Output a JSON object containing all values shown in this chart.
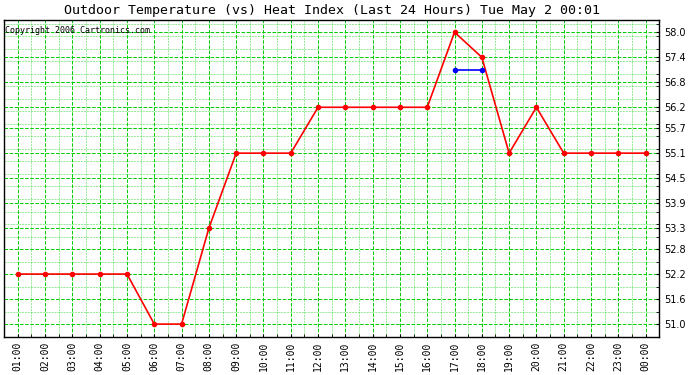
{
  "title": "Outdoor Temperature (vs) Heat Index (Last 24 Hours) Tue May 2 00:01",
  "copyright": "Copyright 2006 Cartronics.com",
  "x_labels": [
    "01:00",
    "02:00",
    "03:00",
    "04:00",
    "05:00",
    "06:00",
    "07:00",
    "08:00",
    "09:00",
    "10:00",
    "11:00",
    "12:00",
    "13:00",
    "14:00",
    "15:00",
    "16:00",
    "17:00",
    "18:00",
    "19:00",
    "20:00",
    "21:00",
    "22:00",
    "23:00",
    "00:00"
  ],
  "temp_data": [
    [
      0,
      52.2
    ],
    [
      1,
      52.2
    ],
    [
      2,
      52.2
    ],
    [
      3,
      52.2
    ],
    [
      4,
      52.2
    ],
    [
      5,
      51.0
    ],
    [
      6,
      51.0
    ],
    [
      7,
      53.3
    ],
    [
      8,
      55.1
    ],
    [
      9,
      55.1
    ],
    [
      10,
      55.1
    ],
    [
      11,
      56.2
    ],
    [
      12,
      56.2
    ],
    [
      13,
      56.2
    ],
    [
      14,
      56.2
    ],
    [
      15,
      56.2
    ],
    [
      16,
      58.0
    ],
    [
      17,
      57.4
    ],
    [
      18,
      55.1
    ],
    [
      19,
      56.2
    ],
    [
      20,
      55.1
    ],
    [
      21,
      55.1
    ],
    [
      22,
      55.1
    ],
    [
      23,
      55.1
    ]
  ],
  "heat_data": [
    [
      16,
      57.1
    ],
    [
      17,
      57.1
    ]
  ],
  "y_ticks": [
    51.0,
    51.6,
    52.2,
    52.8,
    53.3,
    53.9,
    54.5,
    55.1,
    55.7,
    56.2,
    56.8,
    57.4,
    58.0
  ],
  "y_min": 50.7,
  "y_max": 58.3,
  "temp_color": "#ff0000",
  "heat_color": "#0000ff",
  "grid_color": "#00cc00",
  "bg_color": "#ffffff",
  "plot_bg_color": "#ffffff",
  "marker_size": 3,
  "line_width": 1.2,
  "title_fontsize": 9.5,
  "copyright_fontsize": 6,
  "tick_fontsize": 7,
  "fig_width": 6.9,
  "fig_height": 3.75,
  "dpi": 100
}
